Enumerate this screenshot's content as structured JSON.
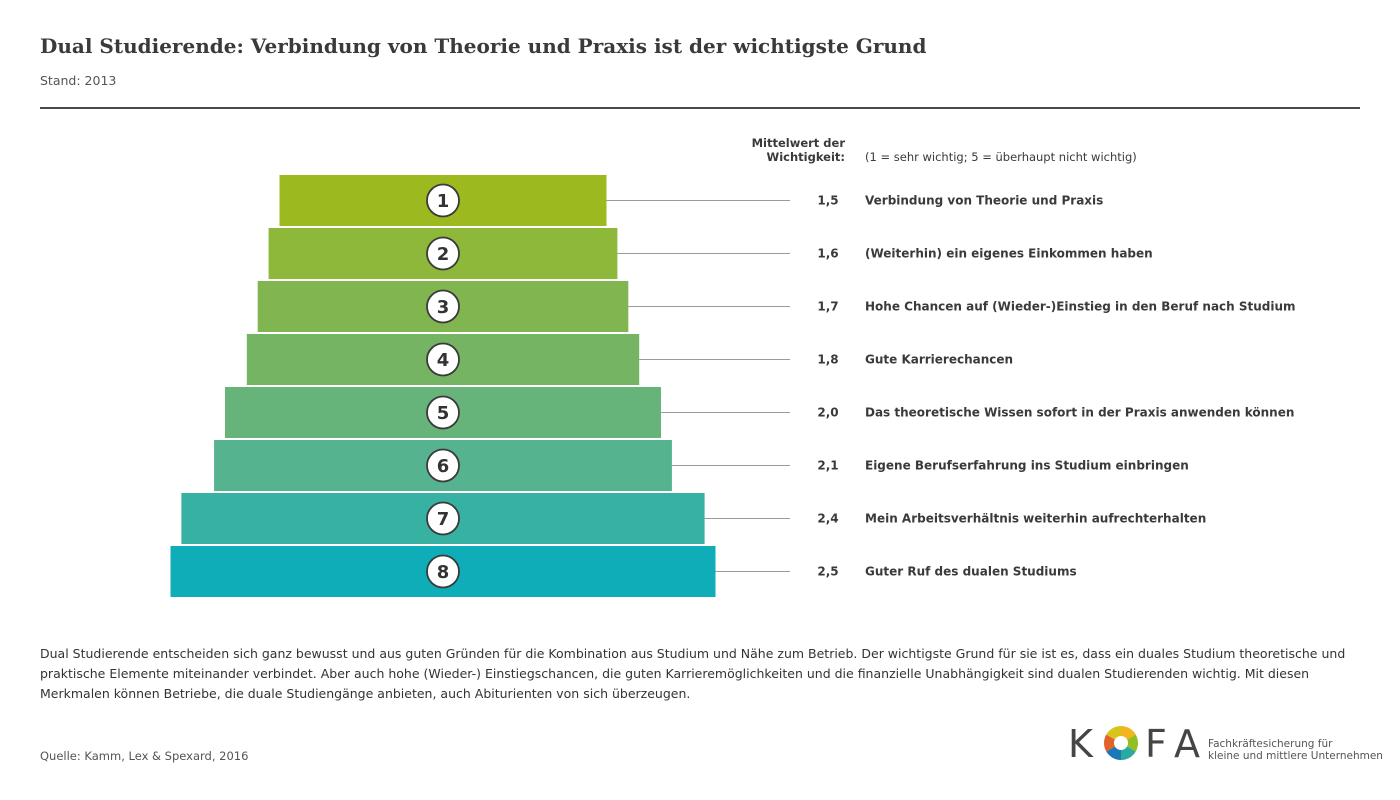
{
  "header": {
    "title": "Dual Studierende: Verbindung von Theorie und Praxis ist der wichtigste Grund",
    "subtitle": "Stand: 2013"
  },
  "chart_data": {
    "type": "bar",
    "value_header": [
      "Mittelwert der",
      "Wichtigkeit:"
    ],
    "scale_note": "(1 = sehr wichtig; 5 = überhaupt nicht wichtig)",
    "ranks": [
      "1",
      "2",
      "3",
      "4",
      "5",
      "6",
      "7",
      "8"
    ],
    "categories": [
      "Verbindung von Theorie und Praxis",
      "(Weiterhin) ein eigenes Einkommen haben",
      "Hohe Chancen auf (Wieder-)Einstieg in den Beruf nach Studium",
      "Gute Karrierechancen",
      "Das theoretische Wissen sofort in der Praxis anwenden können",
      "Eigene Berufserfahrung ins Studium einbringen",
      "Mein Arbeitsverhältnis weiterhin aufrechterhalten",
      "Guter Ruf des dualen Studiums"
    ],
    "values": [
      1.5,
      1.6,
      1.7,
      1.8,
      2.0,
      2.1,
      2.4,
      2.5
    ],
    "value_labels": [
      "1,5",
      "1,6",
      "1,7",
      "1,8",
      "2,0",
      "2,1",
      "2,4",
      "2,5"
    ],
    "colors": [
      "#9cba1f",
      "#8eb83a",
      "#81b54f",
      "#74b462",
      "#66b47a",
      "#55b38f",
      "#36b1a2",
      "#0fadb8"
    ]
  },
  "description": "Dual Studierende entscheiden sich ganz bewusst und aus guten Gründen für die Kombination aus Studium und Nähe zum Betrieb. Der wichtigste Grund für sie ist es, dass ein duales Studium theoretische und praktische Elemente miteinander verbindet. Aber auch hohe (Wieder-) Einstiegschancen, die guten Karrieremöglichkeiten und die finanzielle Unabhängigkeit sind dualen Studierenden wichtig. Mit diesen Merkmalen können Betriebe, die duale Studiengänge anbieten, auch Abiturienten von sich überzeugen.",
  "source": "Quelle: Kamm, Lex & Spexard, 2016",
  "logo": {
    "letters": [
      "K",
      "F",
      "A"
    ],
    "tagline": [
      "Fachkräftesicherung für",
      "kleine und mittlere Unternehmen"
    ],
    "ring_colors": [
      "#f2b51c",
      "#93c020",
      "#2aa9a0",
      "#1a78b8",
      "#e2632a",
      "#d8c51b"
    ]
  }
}
